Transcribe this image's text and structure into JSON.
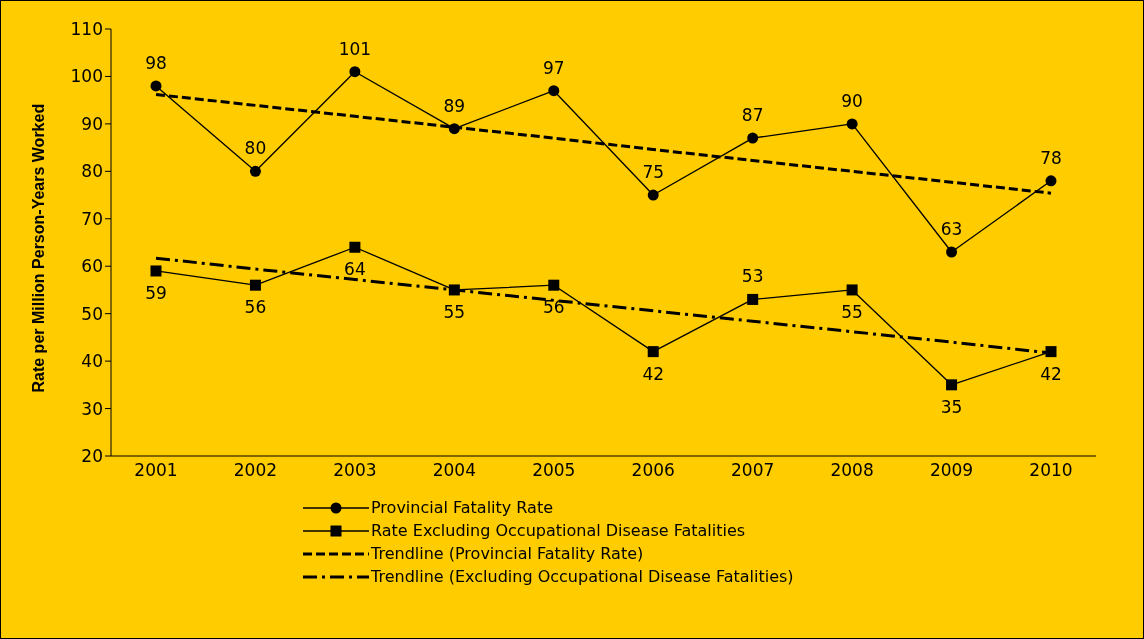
{
  "chart_data": {
    "type": "line",
    "ylabel": "Rate per Million Person-Years Worked",
    "categories": [
      "2001",
      "2002",
      "2003",
      "2004",
      "2005",
      "2006",
      "2007",
      "2008",
      "2009",
      "2010"
    ],
    "ylim": [
      20,
      110
    ],
    "yticks": [
      20,
      30,
      40,
      50,
      60,
      70,
      80,
      90,
      100,
      110
    ],
    "grid": false,
    "legend": "bottom",
    "series": [
      {
        "name": "Provincial Fatality Rate",
        "color": "#000000",
        "marker": "circle",
        "line_style": "solid",
        "values": [
          98,
          80,
          101,
          89,
          97,
          75,
          87,
          90,
          63,
          78
        ],
        "value_labels": [
          "98",
          "80",
          "101",
          "89",
          "97",
          "75",
          "87",
          "90",
          "63",
          "78"
        ]
      },
      {
        "name": "Rate Excluding Occupational Disease Fatalities",
        "color": "#000000",
        "marker": "square",
        "line_style": "solid",
        "values": [
          59,
          56,
          64,
          55,
          56,
          42,
          53,
          55,
          35,
          42
        ],
        "value_labels": [
          "59",
          "56",
          "64",
          "55",
          "56",
          "42",
          "53",
          "55",
          "35",
          "42"
        ]
      },
      {
        "name": "Trendline (Provincial Fatality Rate)",
        "color": "#000000",
        "marker": "none",
        "line_style": "dashed",
        "values": [
          96.2,
          93.9,
          91.6,
          89.3,
          87.0,
          84.6,
          82.3,
          80.0,
          77.7,
          75.4
        ]
      },
      {
        "name": "Trendline (Excluding Occupational Disease Fatalities)",
        "color": "#000000",
        "marker": "none",
        "line_style": "dashdot",
        "values": [
          61.7,
          59.4,
          57.2,
          55.0,
          52.8,
          50.6,
          48.4,
          46.2,
          44.0,
          41.7
        ]
      }
    ]
  }
}
